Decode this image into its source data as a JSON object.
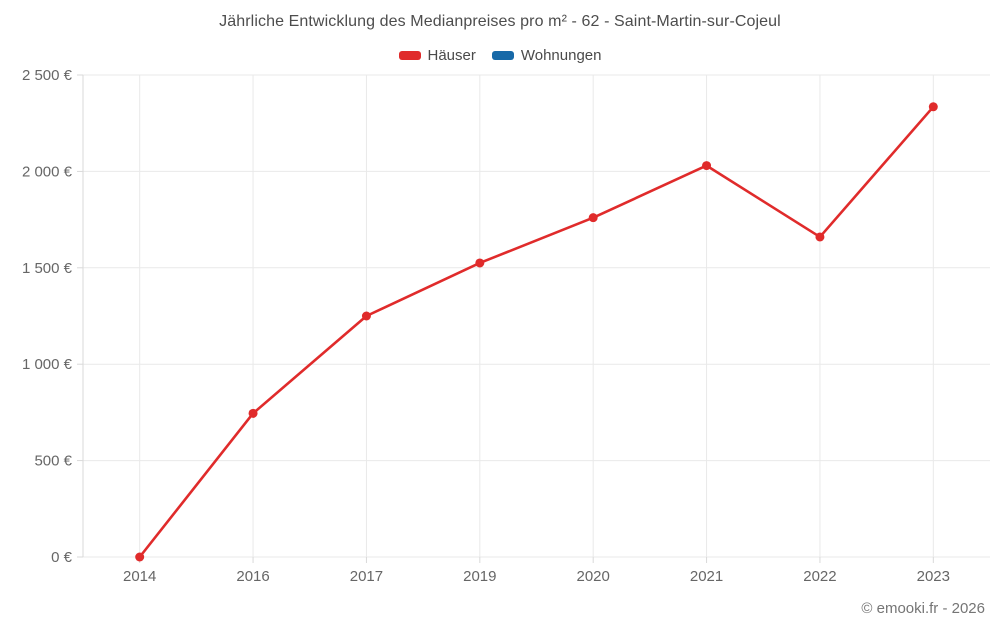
{
  "chart": {
    "title": "Jährliche Entwicklung des Medianpreises pro m² - 62 - Saint-Martin-sur-Cojeul",
    "copyright": "© emooki.fr - 2026"
  },
  "chart_data": {
    "type": "line",
    "title": "Jährliche Entwicklung des Medianpreises pro m² - 62 - Saint-Martin-sur-Cojeul",
    "categories": [
      "2014",
      "2016",
      "2017",
      "2019",
      "2020",
      "2021",
      "2022",
      "2023"
    ],
    "series": [
      {
        "name": "Häuser",
        "color": "#e02b2b",
        "values": [
          0,
          745,
          1250,
          1525,
          1760,
          2030,
          1660,
          2335
        ]
      },
      {
        "name": "Wohnungen",
        "color": "#1769a8",
        "values": []
      }
    ],
    "ylim": [
      0,
      2500
    ],
    "yticks": [
      0,
      500,
      1000,
      1500,
      2000,
      2500
    ],
    "ytick_labels": [
      "0 €",
      "500 €",
      "1 000 €",
      "1 500 €",
      "2 000 €",
      "2 500 €"
    ],
    "ylabel": "",
    "xlabel": "",
    "unit": "€",
    "grid": true,
    "legend_position": "top",
    "colors": {
      "grid": "#e9e9e9",
      "axis": "#d9d9d9",
      "tick_text": "#666666",
      "title_text": "#4d4d4d"
    }
  }
}
